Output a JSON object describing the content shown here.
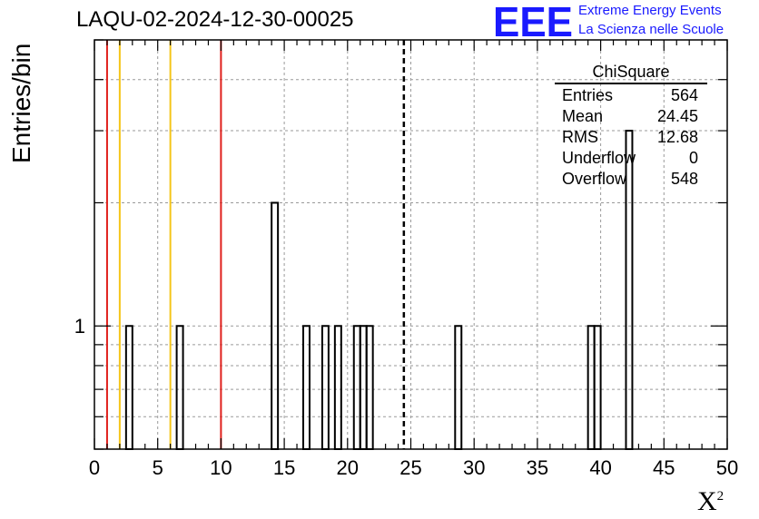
{
  "run_title": "LAQU-02-2024-12-30-00025",
  "logo": {
    "text": "EEE",
    "color": "#1a1aff"
  },
  "org": {
    "line1": "Extreme Energy Events",
    "line2": "La Scienza nelle Scuole"
  },
  "stats_box": {
    "title": "ChiSquare",
    "rows": [
      {
        "label": "Entries",
        "value": "564"
      },
      {
        "label": "Mean",
        "value": "24.45"
      },
      {
        "label": "RMS",
        "value": "12.68"
      },
      {
        "label": "Underflow",
        "value": "0"
      },
      {
        "label": "Overflow",
        "value": "548"
      }
    ]
  },
  "chart_data": {
    "type": "bar",
    "histogram": "step",
    "xlabel_base": "X",
    "xlabel_sup": "2",
    "ylabel": "Entries/bin",
    "xlim": [
      0,
      50
    ],
    "ylim": [
      0.5,
      5
    ],
    "y_scale": "log",
    "grid": true,
    "bin_width": 0.5,
    "xticks": [
      0,
      5,
      10,
      15,
      20,
      25,
      30,
      35,
      40,
      45,
      50
    ],
    "ytick_labels": [
      {
        "value": 1,
        "label": "1"
      }
    ],
    "bins": [
      {
        "x": 2.5,
        "count": 1
      },
      {
        "x": 6.5,
        "count": 1
      },
      {
        "x": 14.0,
        "count": 2
      },
      {
        "x": 16.5,
        "count": 1
      },
      {
        "x": 18.0,
        "count": 1
      },
      {
        "x": 19.0,
        "count": 1
      },
      {
        "x": 20.5,
        "count": 1
      },
      {
        "x": 21.0,
        "count": 1
      },
      {
        "x": 21.5,
        "count": 1
      },
      {
        "x": 28.5,
        "count": 1
      },
      {
        "x": 39.0,
        "count": 1
      },
      {
        "x": 39.5,
        "count": 1
      },
      {
        "x": 42.0,
        "count": 3
      }
    ],
    "vertical_lines": [
      {
        "x": 1,
        "color": "#e0201c",
        "style": "solid"
      },
      {
        "x": 2,
        "color": "#f5c518",
        "style": "solid"
      },
      {
        "x": 6,
        "color": "#f5c518",
        "style": "solid"
      },
      {
        "x": 10,
        "color": "#e0201c",
        "style": "solid"
      },
      {
        "x": 24.45,
        "color": "#000000",
        "style": "dashed"
      }
    ]
  }
}
